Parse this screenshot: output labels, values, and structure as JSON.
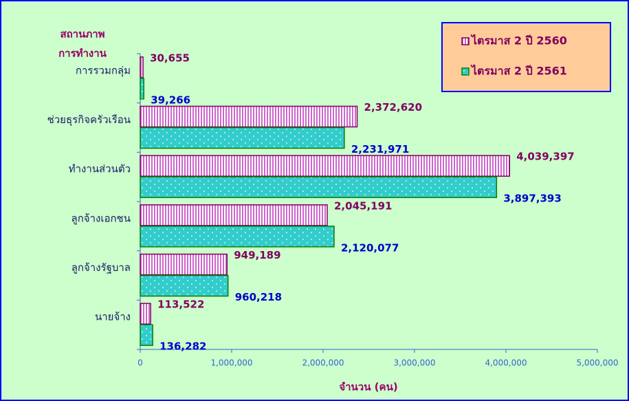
{
  "chart_data": {
    "type": "hbar",
    "y_axis_title": [
      "สถานภาพ",
      "การทำงาน"
    ],
    "x_axis_title": "จำนวน (คน)",
    "categories": [
      "การรวมกลุ่ม",
      "ช่วยธุรกิจครัวเรือน",
      "ทำงานส่วนตัว",
      "ลูกจ้างเอกชน",
      "ลูกจ้างรัฐบาล",
      "นายจ้าง"
    ],
    "series": [
      {
        "name": "ไตรมาส 2 ปี 2560",
        "color": "#cc66cc",
        "label_color": "#800060",
        "values": [
          30655,
          2372620,
          4039397,
          2045191,
          949189,
          113522
        ],
        "value_labels": [
          "30,655",
          "2,372,620",
          "4,039,397",
          "2,045,191",
          "949,189",
          "113,522"
        ]
      },
      {
        "name": "ไตรมาส 2 ปี 2561",
        "color": "#33cccc",
        "label_color": "#0000cc",
        "values": [
          39266,
          2231971,
          3897393,
          2120077,
          960218,
          136282
        ],
        "value_labels": [
          "39,266",
          "2,231,971",
          "3,897,393",
          "2,120,077",
          "960,218",
          "136,282"
        ]
      }
    ],
    "xlim": [
      0,
      5000000
    ],
    "xticks": [
      0,
      {
        "value": 1000000,
        "label": "1,000,000"
      },
      {
        "value": 2000000,
        "label": "2,000,000"
      },
      {
        "value": 3000000,
        "label": "3,000,000"
      },
      {
        "value": 4000000,
        "label": "4,000,000"
      },
      {
        "value": 5000000,
        "label": "5,000,000"
      }
    ],
    "legend": "top-right"
  }
}
